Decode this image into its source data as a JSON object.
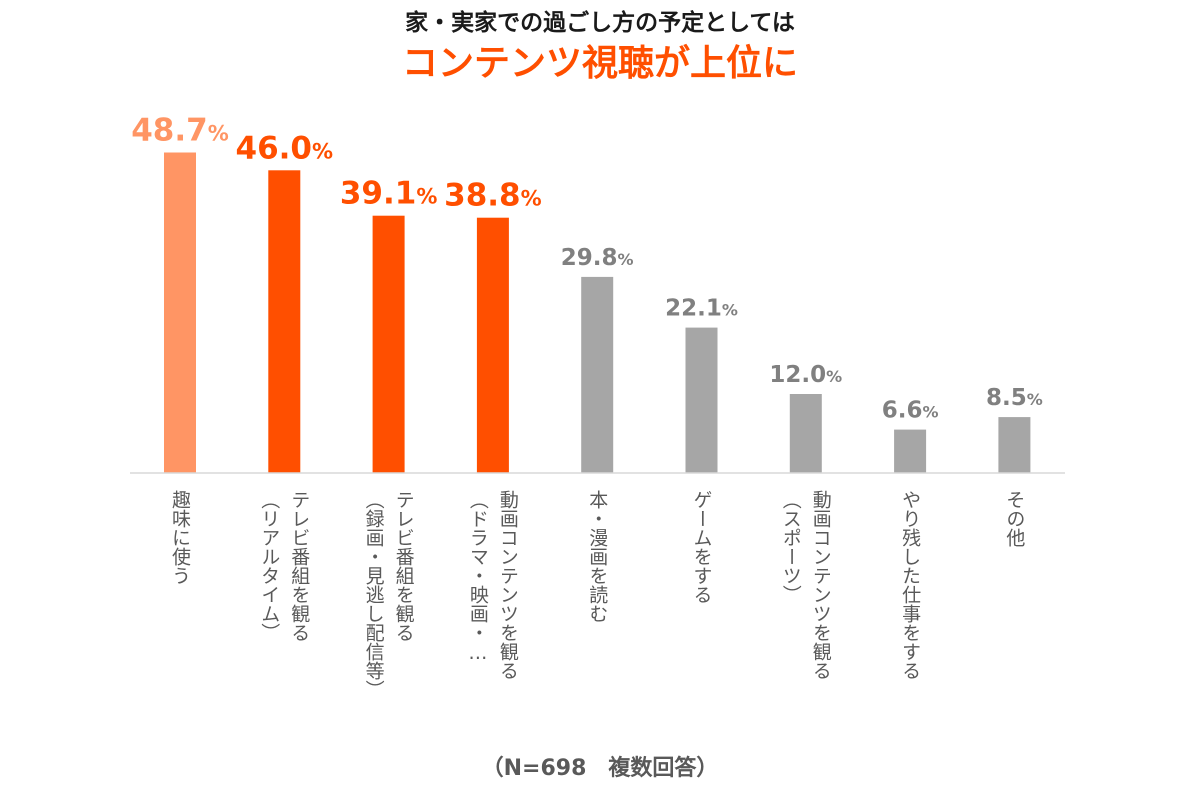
{
  "chart_data": {
    "type": "bar",
    "title": "家・実家での過ごし方の予定としては",
    "subtitle": "コンテンツ視聴が上位に",
    "note": "（N=698　複数回答）",
    "unit": "%",
    "ylim": [
      0,
      55
    ],
    "grid": false,
    "legend": "none",
    "categories": [
      [
        "趣味に使う"
      ],
      [
        "テレビ番組を観る",
        "（リアルタイム）"
      ],
      [
        "テレビ番組を観る",
        "（録画・見逃し配信等）"
      ],
      [
        "動画コンテンツを観る",
        "（ドラマ・映画・…"
      ],
      [
        "本・漫画を読む"
      ],
      [
        "ゲームをする"
      ],
      [
        "動画コンテンツを観る",
        "（スポーツ）"
      ],
      [
        "やり残した仕事をする"
      ],
      [
        "その他"
      ]
    ],
    "values": [
      48.7,
      46.0,
      39.1,
      38.8,
      29.8,
      22.1,
      12.0,
      6.6,
      8.5
    ],
    "value_labels": [
      "48.7",
      "46.0",
      "39.1",
      "38.8",
      "29.8",
      "22.1",
      "12.0",
      "6.6",
      "8.5"
    ],
    "colors": [
      "#FF9564",
      "#FF4F00",
      "#FF4F00",
      "#FF4F00",
      "#A6A6A6",
      "#A6A6A6",
      "#A6A6A6",
      "#A6A6A6",
      "#A6A6A6"
    ],
    "label_colors": [
      "#FF9564",
      "#FF4F00",
      "#FF4F00",
      "#FF4F00",
      "#808080",
      "#808080",
      "#808080",
      "#808080",
      "#808080"
    ]
  },
  "colors": {
    "title": "#1A1A1A",
    "subtitle": "#FF4F00",
    "axis": "#D9D9D9",
    "category_text": "#595959",
    "note_text": "#595959"
  }
}
